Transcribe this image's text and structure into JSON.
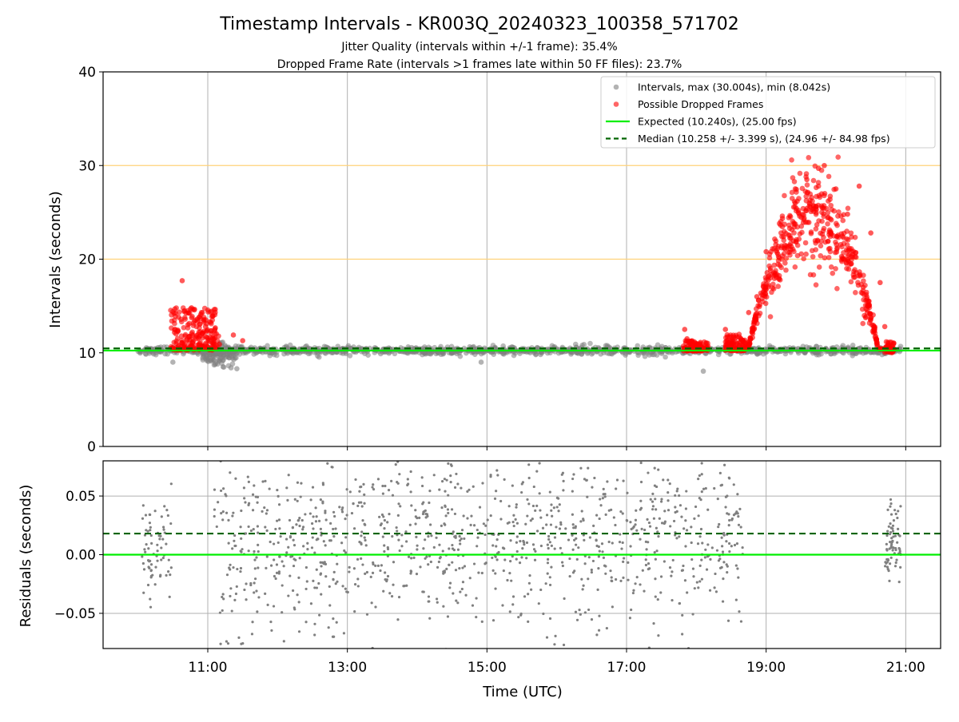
{
  "figure": {
    "title": "Timestamp Intervals - KR003Q_20240323_100358_571702",
    "subtitle_1": "Jitter Quality (intervals within +/-1 frame): 35.4%",
    "subtitle_2": "Dropped Frame Rate (intervals >1 frames late within 50 FF files): 23.7%",
    "xlabel": "Time (UTC)"
  },
  "colors": {
    "intervals": "#808080",
    "dropped": "#ff0000",
    "expected": "#00ee00",
    "median": "#006400",
    "threshold": "#ffd27a",
    "grid": "#b0b0b0"
  },
  "chart_data": [
    {
      "type": "scatter",
      "panel": "top",
      "ylabel": "Intervals (seconds)",
      "xlim": [
        "09:30",
        "21:30"
      ],
      "ylim": [
        0,
        40
      ],
      "xticks": [
        "11:00",
        "13:00",
        "15:00",
        "17:00",
        "19:00",
        "21:00"
      ],
      "yticks": [
        0,
        10,
        20,
        30,
        40
      ],
      "grid": "vertical",
      "legend_position": "top-right",
      "hlines": [
        {
          "name": "Expected (10.240s), (25.00 fps)",
          "y": 10.24,
          "style": "solid",
          "color": "#00ee00"
        },
        {
          "name": "Median (10.258 +/- 3.399 s), (24.96 +/- 84.98 fps)",
          "y": 10.258,
          "style": "dashed",
          "color": "#006400"
        },
        {
          "name": "",
          "y": 20,
          "style": "solid",
          "color": "#ffd27a"
        },
        {
          "name": "",
          "y": 30,
          "style": "solid",
          "color": "#ffd27a"
        }
      ],
      "series": [
        {
          "name": "Intervals, max (30.004s), min (8.042s)",
          "color": "#808080",
          "segments": [
            {
              "start": "10:00",
              "end": "20:56",
              "mean": 10.25,
              "spread": 0.35
            },
            {
              "start": "10:55",
              "end": "11:25",
              "mean": 9.8,
              "spread": 0.9
            }
          ],
          "outliers": [
            {
              "x": "11:20",
              "y": 8.4
            },
            {
              "x": "11:25",
              "y": 8.3
            },
            {
              "x": "18:06",
              "y": 8.04
            },
            {
              "x": "10:30",
              "y": 9.0
            },
            {
              "x": "14:55",
              "y": 9.0
            }
          ]
        },
        {
          "name": "Possible Dropped Frames",
          "color": "#ff0000",
          "points": [
            {
              "x": "10:29",
              "y": 10.5
            },
            {
              "x": "10:32",
              "y": 12.5
            },
            {
              "x": "10:35",
              "y": 13.8
            },
            {
              "x": "10:38",
              "y": 17.7
            },
            {
              "x": "10:40",
              "y": 14.5
            },
            {
              "x": "10:43",
              "y": 13.0
            },
            {
              "x": "10:46",
              "y": 14.8
            },
            {
              "x": "10:50",
              "y": 11.5
            },
            {
              "x": "10:54",
              "y": 14.1
            },
            {
              "x": "10:58",
              "y": 12.8
            },
            {
              "x": "11:02",
              "y": 11.2
            },
            {
              "x": "11:06",
              "y": 12.4
            },
            {
              "x": "11:10",
              "y": 10.9
            },
            {
              "x": "11:22",
              "y": 11.9
            },
            {
              "x": "11:30",
              "y": 11.3
            },
            {
              "x": "17:50",
              "y": 12.5
            },
            {
              "x": "17:52",
              "y": 11.5
            },
            {
              "x": "18:00",
              "y": 11.0
            },
            {
              "x": "18:10",
              "y": 10.7
            },
            {
              "x": "18:25",
              "y": 12.5
            },
            {
              "x": "18:35",
              "y": 11.0
            },
            {
              "x": "18:45",
              "y": 14.3
            },
            {
              "x": "18:52",
              "y": 16.0
            },
            {
              "x": "19:00",
              "y": 20.8
            },
            {
              "x": "19:05",
              "y": 18.4
            },
            {
              "x": "19:15",
              "y": 22.4
            },
            {
              "x": "19:25",
              "y": 26.0
            },
            {
              "x": "19:35",
              "y": 28.5
            },
            {
              "x": "19:45",
              "y": 29.7
            },
            {
              "x": "19:50",
              "y": 30.0
            },
            {
              "x": "20:00",
              "y": 27.5
            },
            {
              "x": "20:10",
              "y": 24.8
            },
            {
              "x": "20:20",
              "y": 27.8
            },
            {
              "x": "20:30",
              "y": 22.8
            },
            {
              "x": "20:38",
              "y": 17.5
            },
            {
              "x": "20:42",
              "y": 12.8
            },
            {
              "x": "20:46",
              "y": 10.6
            }
          ],
          "clusters": [
            {
              "start": "10:28",
              "end": "11:10",
              "low": 10.3,
              "high": 14.8
            },
            {
              "start": "17:48",
              "end": "18:10",
              "low": 10.2,
              "high": 11.3
            },
            {
              "start": "18:25",
              "end": "18:45",
              "low": 10.2,
              "high": 12.0
            },
            {
              "start": "18:45",
              "end": "20:45",
              "shape": "arch",
              "low": 10.4,
              "peak": 24.5,
              "spread": 2.6
            },
            {
              "start": "20:42",
              "end": "20:50",
              "low": 10.0,
              "high": 11.2
            }
          ]
        }
      ]
    },
    {
      "type": "scatter",
      "panel": "bottom",
      "ylabel": "Residuals (seconds)",
      "xlim": [
        "09:30",
        "21:30"
      ],
      "ylim": [
        -0.08,
        0.08
      ],
      "xticks": [
        "11:00",
        "13:00",
        "15:00",
        "17:00",
        "19:00",
        "21:00"
      ],
      "yticks": [
        "0.05",
        "0.00",
        "−0.05"
      ],
      "yticks_values": [
        0.05,
        0.0,
        -0.05
      ],
      "grid": "both",
      "hlines": [
        {
          "name": "",
          "y": 0.0,
          "style": "solid",
          "color": "#00ee00"
        },
        {
          "name": "",
          "y": 0.018,
          "style": "dashed",
          "color": "#006400"
        }
      ],
      "series": [
        {
          "name": "",
          "color": "#808080",
          "segments": [
            {
              "start": "10:03",
              "end": "10:30",
              "spread": 0.035
            },
            {
              "start": "11:05",
              "end": "18:40",
              "spread": 0.11
            },
            {
              "start": "20:42",
              "end": "20:56",
              "spread": 0.03
            }
          ]
        }
      ]
    }
  ]
}
